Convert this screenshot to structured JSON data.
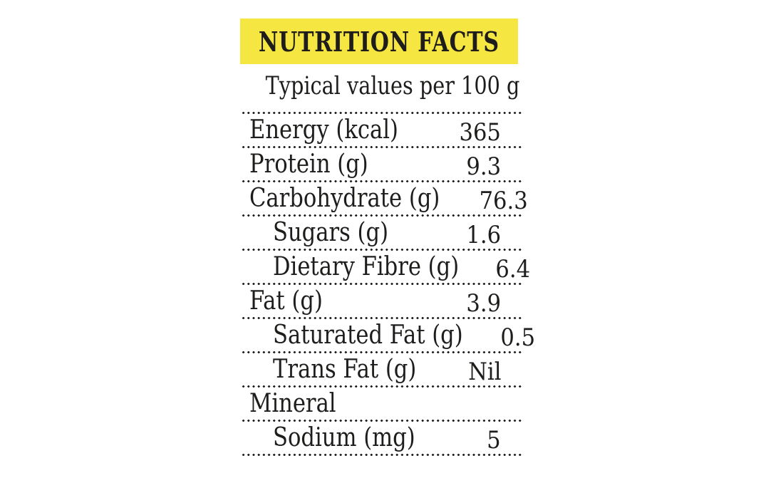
{
  "panel": {
    "title": "NUTRITION FACTS",
    "subtitle": "Typical values per 100 g",
    "colors": {
      "highlight": "#f5e642",
      "text": "#1e1d1b"
    }
  },
  "table": {
    "rows": [
      {
        "label": "Energy (kcal)",
        "value": "365",
        "indent": false
      },
      {
        "label": "Protein (g)",
        "value": "9.3",
        "indent": false
      },
      {
        "label": "Carbohydrate (g)",
        "value": "76.3",
        "indent": false
      },
      {
        "label": "Sugars (g)",
        "value": "1.6",
        "indent": true
      },
      {
        "label": "Dietary Fibre (g)",
        "value": "6.4",
        "indent": true
      },
      {
        "label": "Fat (g)",
        "value": "3.9",
        "indent": false
      },
      {
        "label": "Saturated Fat (g)",
        "value": "0.5",
        "indent": true
      },
      {
        "label": "Trans Fat (g)",
        "value": "Nil",
        "indent": true
      },
      {
        "label": "Mineral",
        "value": "",
        "indent": false
      },
      {
        "label": "Sodium (mg)",
        "value": "5",
        "indent": true
      }
    ]
  }
}
